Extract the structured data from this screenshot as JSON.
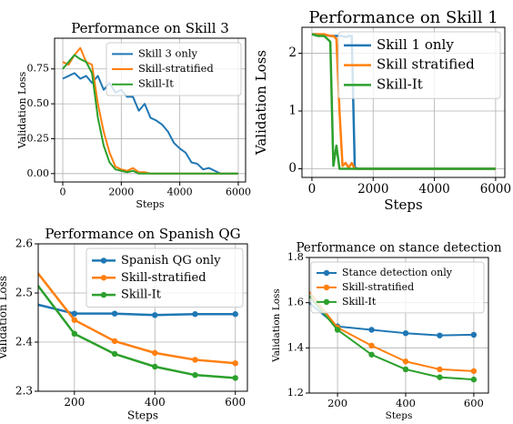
{
  "chart_data": [
    {
      "type": "line",
      "title": "Performance on Skill 3",
      "xlabel": "Steps",
      "ylabel": "Validation Loss",
      "x": [
        0,
        200,
        400,
        600,
        800,
        1000,
        1200,
        1400,
        1600,
        1800,
        2000,
        2200,
        2400,
        2600,
        2800,
        3000,
        3200,
        3400,
        3600,
        3800,
        4000,
        4200,
        4400,
        4600,
        4800,
        5000,
        5200,
        5400,
        5600,
        5800,
        6000
      ],
      "series": [
        {
          "name": "Skill 3 only",
          "color": "#1f77b4",
          "values": [
            0.68,
            0.7,
            0.72,
            0.68,
            0.7,
            0.65,
            0.7,
            0.6,
            0.65,
            0.58,
            0.6,
            0.55,
            0.55,
            0.45,
            0.5,
            0.4,
            0.38,
            0.35,
            0.3,
            0.22,
            0.18,
            0.15,
            0.08,
            0.07,
            0.03,
            0.04,
            0.02,
            0,
            0,
            0,
            0
          ]
        },
        {
          "name": "Skill-stratified",
          "color": "#ff7f0e",
          "values": [
            0.8,
            0.78,
            0.85,
            0.9,
            0.8,
            0.78,
            0.5,
            0.3,
            0.15,
            0.05,
            0.03,
            0.02,
            0.04,
            0.01,
            0.01,
            0,
            0,
            0,
            0,
            0,
            0,
            0,
            0,
            0,
            0,
            0,
            0,
            0,
            0,
            0,
            0
          ]
        },
        {
          "name": "Skill-It",
          "color": "#2ca02c",
          "values": [
            0.75,
            0.8,
            0.85,
            0.82,
            0.8,
            0.72,
            0.4,
            0.2,
            0.08,
            0.03,
            0.02,
            0.01,
            0.02,
            0,
            0,
            0,
            0,
            0,
            0,
            0,
            0,
            0,
            0,
            0,
            0,
            0,
            0,
            0,
            0,
            0,
            0
          ]
        }
      ],
      "xlim": [
        -280,
        6250
      ],
      "ylim": [
        -0.06,
        0.97
      ],
      "xticks": [
        0,
        2000,
        4000,
        6000
      ],
      "yticks": [
        {
          "value": 0,
          "label": "0.00"
        },
        {
          "value": 0.25,
          "label": "0.25"
        },
        {
          "value": 0.5,
          "label": "0.50"
        },
        {
          "value": 0.75,
          "label": "0.75"
        }
      ],
      "grid": true,
      "legend": "upper right",
      "markers": false
    },
    {
      "type": "line",
      "title": "Performance on Skill 1",
      "xlabel": "Steps",
      "ylabel": "Validation Loss",
      "x": [
        0,
        200,
        400,
        600,
        700,
        800,
        900,
        1000,
        1100,
        1200,
        1300,
        1400,
        1500,
        2000,
        3000,
        4000,
        5000,
        6000
      ],
      "series": [
        {
          "name": "Skill 1 only",
          "color": "#1f77b4",
          "values": [
            2.33,
            2.33,
            2.32,
            2.3,
            2.3,
            2.3,
            2.3,
            2.3,
            2.28,
            2.3,
            2.3,
            0.02,
            0,
            0,
            0,
            0,
            0,
            0
          ]
        },
        {
          "name": "Skill stratified",
          "color": "#ff7f0e",
          "values": [
            2.33,
            2.33,
            2.33,
            2.3,
            2.3,
            2.25,
            1.0,
            0.05,
            0.1,
            0.02,
            0.1,
            0,
            0,
            0,
            0,
            0,
            0,
            0
          ]
        },
        {
          "name": "Skill-It",
          "color": "#2ca02c",
          "values": [
            2.33,
            2.3,
            2.3,
            2.2,
            0.05,
            0.4,
            0,
            0,
            0,
            0,
            0,
            0,
            0,
            0,
            0,
            0,
            0,
            0
          ]
        }
      ],
      "xlim": [
        -325,
        6300
      ],
      "ylim": [
        -0.15,
        2.45
      ],
      "xticks": [
        0,
        2000,
        4000,
        6000
      ],
      "yticks": [
        0,
        1,
        2
      ],
      "grid": true,
      "legend": "upper right",
      "markers": false
    },
    {
      "type": "line",
      "title": "Performance on Spanish QG",
      "xlabel": "Steps",
      "ylabel": "Validation Loss",
      "x": [
        100,
        200,
        300,
        400,
        500,
        600
      ],
      "series": [
        {
          "name": "Spanish QG only",
          "color": "#1f77b4",
          "values": [
            2.478,
            2.458,
            2.458,
            2.455,
            2.457,
            2.457
          ]
        },
        {
          "name": "Skill-stratified",
          "color": "#ff7f0e",
          "values": [
            2.55,
            2.445,
            2.402,
            2.378,
            2.364,
            2.357
          ]
        },
        {
          "name": "Skill-It",
          "color": "#2ca02c",
          "values": [
            2.525,
            2.417,
            2.376,
            2.35,
            2.333,
            2.327
          ]
        }
      ],
      "xlim": [
        110,
        630
      ],
      "ylim": [
        2.3,
        2.6
      ],
      "xticks": [
        200,
        400,
        600
      ],
      "yticks": [
        2.3,
        2.4,
        2.5,
        2.6
      ],
      "grid": true,
      "legend": "upper right",
      "markers": true
    },
    {
      "type": "line",
      "title": "Performance on stance detection",
      "xlabel": "Steps",
      "ylabel": "Validation Loss",
      "x": [
        100,
        200,
        300,
        400,
        500,
        600
      ],
      "series": [
        {
          "name": "Stance detection only",
          "color": "#1f77b4",
          "values": [
            1.62,
            1.495,
            1.48,
            1.465,
            1.455,
            1.458
          ]
        },
        {
          "name": "Skill-stratified",
          "color": "#ff7f0e",
          "values": [
            1.68,
            1.49,
            1.41,
            1.34,
            1.305,
            1.297
          ]
        },
        {
          "name": "Skill-It",
          "color": "#2ca02c",
          "values": [
            1.66,
            1.48,
            1.37,
            1.305,
            1.27,
            1.26
          ]
        }
      ],
      "xlim": [
        117,
        643
      ],
      "ylim": [
        1.2,
        1.8
      ],
      "xticks": [
        200,
        400,
        600
      ],
      "yticks": [
        1.2,
        1.4,
        1.6,
        1.8
      ],
      "grid": true,
      "legend": "upper right",
      "markers": true
    }
  ]
}
